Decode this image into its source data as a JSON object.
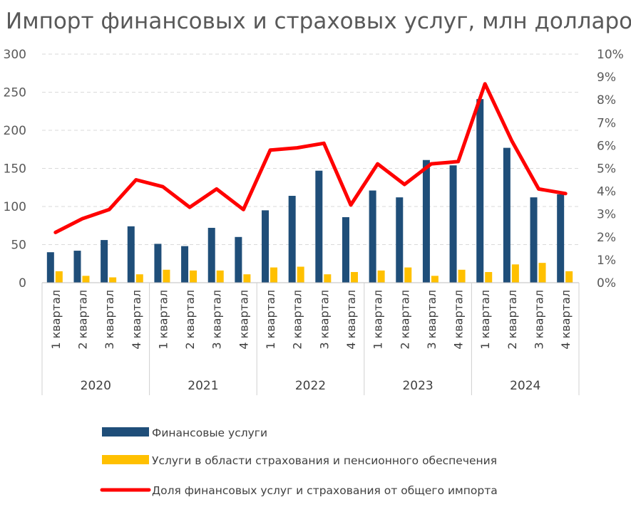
{
  "chart_data": {
    "type": "bar",
    "title": "Импорт финансовых и страховых услуг, млн долларов",
    "years": [
      "2020",
      "2021",
      "2022",
      "2023",
      "2024"
    ],
    "categories": [
      "1 квартал",
      "2 квартал",
      "3 квартал",
      "4 квартал",
      "1 квартал",
      "2 квартал",
      "3 квартал",
      "4 квартал",
      "1 квартал",
      "2 квартал",
      "3 квартал",
      "4 квартал",
      "1 квартал",
      "2 квартал",
      "3 квартал",
      "4 квартал",
      "1 квартал",
      "2 квартал",
      "3 квартал",
      "4 квартал"
    ],
    "y_left": {
      "ylim": [
        0,
        300
      ],
      "ticks": [
        "0",
        "50",
        "100",
        "150",
        "200",
        "250",
        "300"
      ]
    },
    "y_right": {
      "ylim": [
        0,
        10
      ],
      "ticks": [
        "0%",
        "1%",
        "2%",
        "3%",
        "4%",
        "5%",
        "6%",
        "7%",
        "8%",
        "9%",
        "10%"
      ]
    },
    "grid": true,
    "legend_position": "bottom",
    "series": [
      {
        "name": "Финансовые услуги",
        "type": "bar",
        "axis": "left",
        "color": "#1f4e79",
        "values": [
          40,
          42,
          56,
          74,
          51,
          48,
          72,
          60,
          95,
          114,
          147,
          86,
          121,
          112,
          161,
          154,
          241,
          177,
          112,
          116
        ]
      },
      {
        "name": "Услуги в области страхования и пенсионного обеспечения",
        "type": "bar",
        "axis": "left",
        "color": "#ffc000",
        "values": [
          15,
          9,
          7,
          11,
          17,
          16,
          16,
          11,
          20,
          21,
          11,
          14,
          16,
          20,
          9,
          17,
          14,
          24,
          26,
          15
        ]
      },
      {
        "name": "Доля финансовых услуг и страхования от общего импорта",
        "type": "line",
        "axis": "right",
        "color": "#ff0000",
        "values": [
          2.2,
          2.8,
          3.2,
          4.5,
          4.2,
          3.3,
          4.1,
          3.2,
          5.8,
          5.9,
          6.1,
          3.4,
          5.2,
          4.3,
          5.2,
          5.3,
          8.7,
          6.2,
          4.1,
          3.9
        ]
      }
    ]
  }
}
